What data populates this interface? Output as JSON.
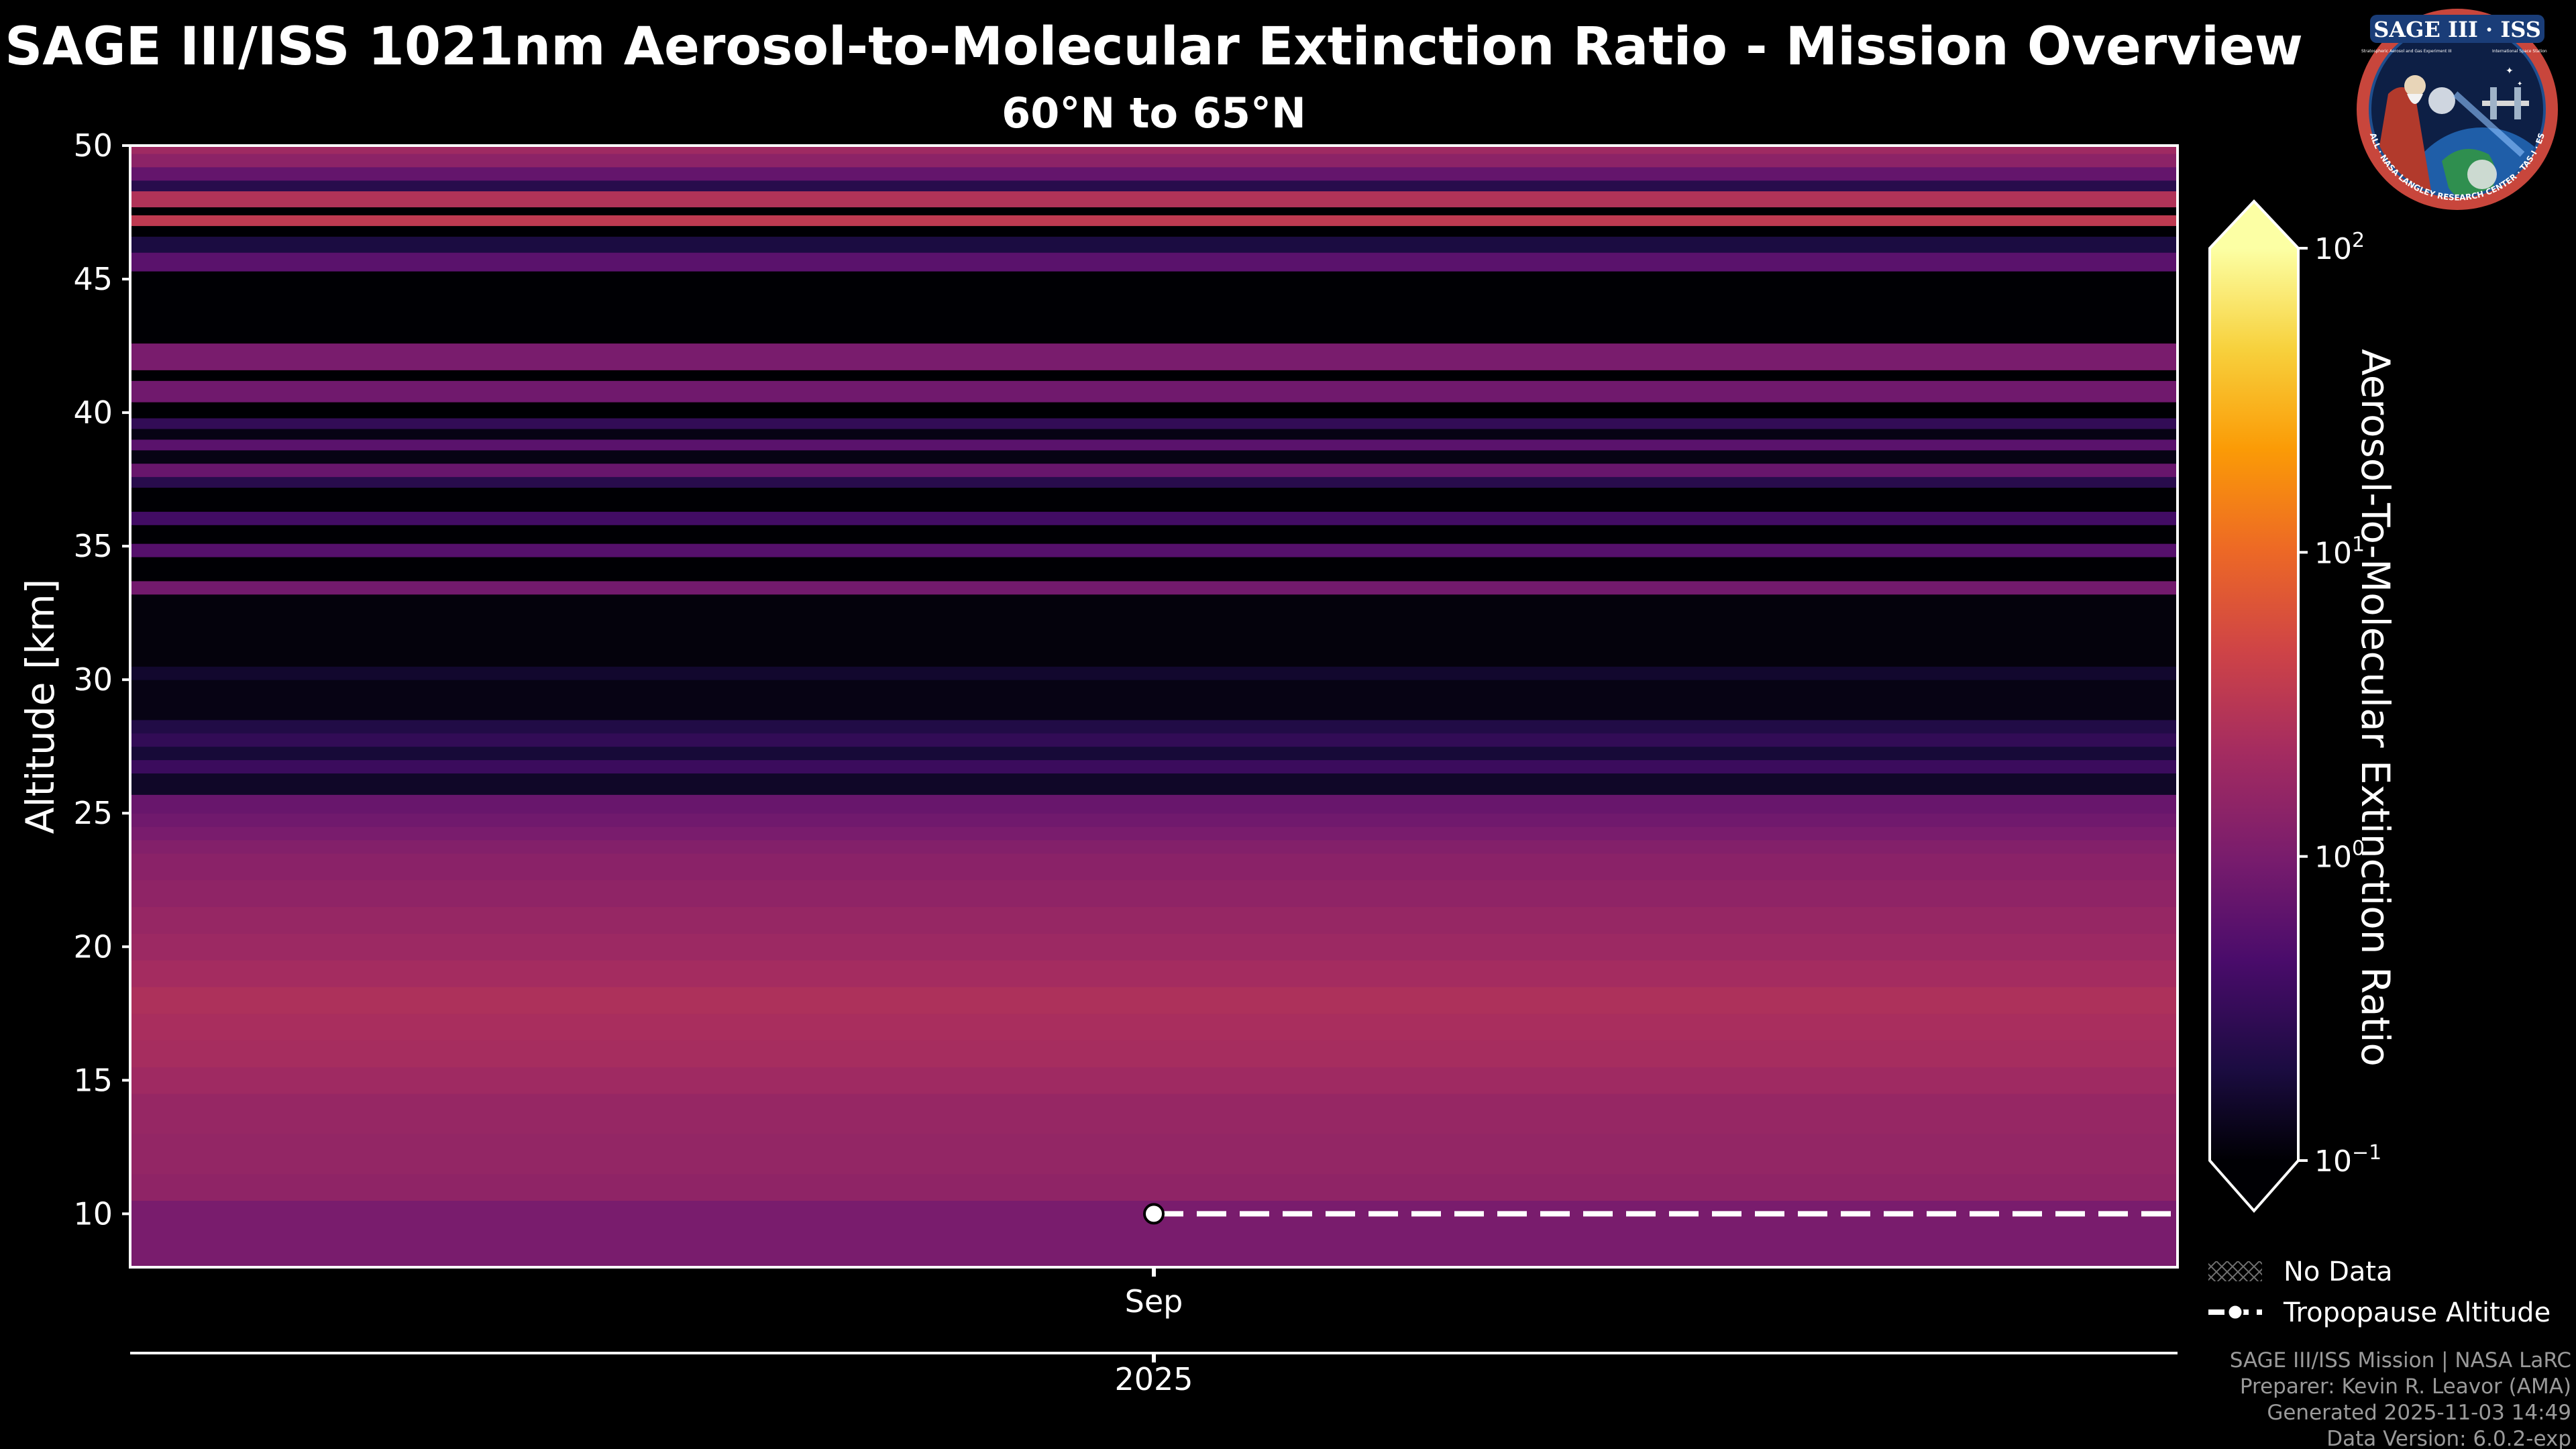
{
  "chart_data": {
    "type": "heatmap",
    "title": "SAGE III/ISS 1021nm Aerosol-to-Molecular Extinction Ratio - Mission Overview",
    "subtitle": "60°N to 65°N",
    "ylabel": "Altitude [km]",
    "ylim": [
      8,
      50
    ],
    "yticks": [
      10,
      15,
      20,
      25,
      30,
      35,
      40,
      45,
      50
    ],
    "xticks": [
      {
        "label": "Sep"
      }
    ],
    "year_label": "2025",
    "colorbar": {
      "label": "Aerosol-To-Molecular Extinction Ratio",
      "scale": "log",
      "range": [
        0.1,
        100
      ],
      "ticks": [
        {
          "base": "10",
          "exp": "2"
        },
        {
          "base": "10",
          "exp": "1"
        },
        {
          "base": "10",
          "exp": "0"
        },
        {
          "base": "10",
          "exp": "−1"
        }
      ],
      "tick_values": [
        100,
        10,
        1,
        0.1
      ],
      "colormap": "inferno"
    },
    "profile_start_fraction": 0.5,
    "profile": [
      {
        "bottom": 8.0,
        "top": 10.5,
        "ratio": 1.0
      },
      {
        "bottom": 10.5,
        "top": 11.5,
        "ratio": 1.5
      },
      {
        "bottom": 11.5,
        "top": 13.0,
        "ratio": 1.6
      },
      {
        "bottom": 13.0,
        "top": 14.5,
        "ratio": 1.7
      },
      {
        "bottom": 14.5,
        "top": 15.5,
        "ratio": 2.0
      },
      {
        "bottom": 15.5,
        "top": 16.5,
        "ratio": 2.3
      },
      {
        "bottom": 16.5,
        "top": 17.5,
        "ratio": 2.4
      },
      {
        "bottom": 17.5,
        "top": 18.5,
        "ratio": 2.6
      },
      {
        "bottom": 18.5,
        "top": 19.5,
        "ratio": 2.2
      },
      {
        "bottom": 19.5,
        "top": 20.5,
        "ratio": 1.9
      },
      {
        "bottom": 20.5,
        "top": 21.5,
        "ratio": 1.7
      },
      {
        "bottom": 21.5,
        "top": 22.5,
        "ratio": 1.5
      },
      {
        "bottom": 22.5,
        "top": 23.5,
        "ratio": 1.35
      },
      {
        "bottom": 23.5,
        "top": 24.0,
        "ratio": 1.2
      },
      {
        "bottom": 24.0,
        "top": 24.5,
        "ratio": 1.0
      },
      {
        "bottom": 24.5,
        "top": 25.0,
        "ratio": 0.85
      },
      {
        "bottom": 25.0,
        "top": 25.7,
        "ratio": 0.75
      },
      {
        "bottom": 25.7,
        "top": 26.5,
        "ratio": 0.15
      },
      {
        "bottom": 26.5,
        "top": 27.0,
        "ratio": 0.35
      },
      {
        "bottom": 27.0,
        "top": 27.5,
        "ratio": 0.18
      },
      {
        "bottom": 27.5,
        "top": 28.0,
        "ratio": 0.3
      },
      {
        "bottom": 28.0,
        "top": 28.5,
        "ratio": 0.22
      },
      {
        "bottom": 28.5,
        "top": 30.0,
        "ratio": 0.12
      },
      {
        "bottom": 30.0,
        "top": 30.5,
        "ratio": 0.16
      },
      {
        "bottom": 30.5,
        "top": 33.2,
        "ratio": 0.11
      },
      {
        "bottom": 33.2,
        "top": 33.7,
        "ratio": 0.9
      },
      {
        "bottom": 33.7,
        "top": 34.6,
        "ratio": 0.1
      },
      {
        "bottom": 34.6,
        "top": 35.1,
        "ratio": 0.55
      },
      {
        "bottom": 35.1,
        "top": 35.8,
        "ratio": 0.1
      },
      {
        "bottom": 35.8,
        "top": 36.3,
        "ratio": 0.4
      },
      {
        "bottom": 36.3,
        "top": 37.2,
        "ratio": 0.1
      },
      {
        "bottom": 37.2,
        "top": 37.6,
        "ratio": 0.25
      },
      {
        "bottom": 37.6,
        "top": 38.1,
        "ratio": 0.75
      },
      {
        "bottom": 38.1,
        "top": 38.6,
        "ratio": 0.12
      },
      {
        "bottom": 38.6,
        "top": 39.0,
        "ratio": 0.6
      },
      {
        "bottom": 39.0,
        "top": 39.4,
        "ratio": 0.12
      },
      {
        "bottom": 39.4,
        "top": 39.8,
        "ratio": 0.3
      },
      {
        "bottom": 39.8,
        "top": 40.4,
        "ratio": 0.1
      },
      {
        "bottom": 40.4,
        "top": 41.2,
        "ratio": 0.85
      },
      {
        "bottom": 41.2,
        "top": 41.6,
        "ratio": 0.1
      },
      {
        "bottom": 41.6,
        "top": 42.6,
        "ratio": 1.0
      },
      {
        "bottom": 42.6,
        "top": 45.3,
        "ratio": 0.1
      },
      {
        "bottom": 45.3,
        "top": 46.0,
        "ratio": 0.6
      },
      {
        "bottom": 46.0,
        "top": 46.6,
        "ratio": 0.2
      },
      {
        "bottom": 46.6,
        "top": 47.0,
        "ratio": 0.1
      },
      {
        "bottom": 47.0,
        "top": 47.4,
        "ratio": 3.5
      },
      {
        "bottom": 47.4,
        "top": 47.7,
        "ratio": 0.1
      },
      {
        "bottom": 47.7,
        "top": 48.3,
        "ratio": 2.8
      },
      {
        "bottom": 48.3,
        "top": 48.7,
        "ratio": 0.25
      },
      {
        "bottom": 48.7,
        "top": 49.2,
        "ratio": 0.7
      },
      {
        "bottom": 49.2,
        "top": 49.7,
        "ratio": 1.4
      },
      {
        "bottom": 49.7,
        "top": 50.0,
        "ratio": 2.0
      }
    ],
    "tropopause": {
      "altitude_km": 10.0,
      "start_fraction": 0.5
    },
    "legend": {
      "placement": "bottom-right",
      "entries": [
        {
          "name": "no-data",
          "label": "No Data"
        },
        {
          "name": "tropopause",
          "label": "Tropopause Altitude"
        }
      ]
    }
  },
  "badge": {
    "title": "SAGE III · ISS",
    "left_text": "Stratospheric Aerosol and Gas Experiment III",
    "right_text": "International Space Station",
    "ring_text": "BALL · NASA LANGLEY RESEARCH CENTER · TAS-I · ESA"
  },
  "credits": {
    "line1": "SAGE III/ISS Mission | NASA LaRC",
    "line2": "Preparer: Kevin R. Leavor (AMA)",
    "line3": "Generated 2025-11-03 14:49",
    "line4": "Data Version: 6.0.2-exp"
  },
  "colors": {
    "background": "#000000",
    "axis": "#ffffff",
    "credits": "#9a9a9a",
    "badge_ring": "#c8463c",
    "badge_blue": "#1f4f8f"
  }
}
